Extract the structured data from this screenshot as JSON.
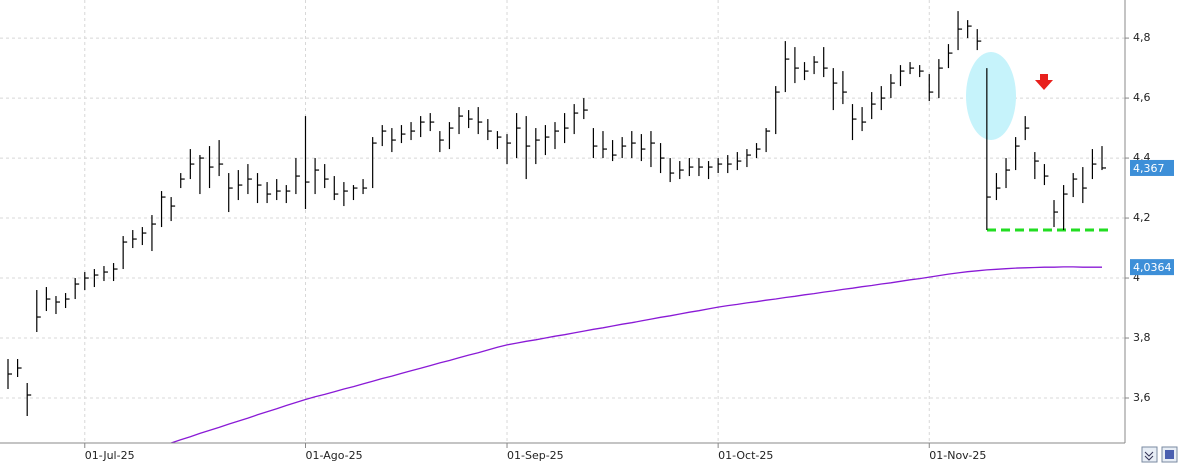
{
  "chart_data": {
    "type": "ohlc",
    "categories": [
      null,
      null,
      null,
      null,
      null,
      null,
      null,
      null,
      "01-Jul-25",
      null,
      null,
      null,
      null,
      null,
      null,
      null,
      null,
      null,
      null,
      null,
      null,
      null,
      null,
      null,
      null,
      null,
      null,
      null,
      null,
      null,
      null,
      "01-Ago-25",
      null,
      null,
      null,
      null,
      null,
      null,
      null,
      null,
      null,
      null,
      null,
      null,
      null,
      null,
      null,
      null,
      null,
      null,
      null,
      null,
      "01-Sep-25",
      null,
      null,
      null,
      null,
      null,
      null,
      null,
      null,
      null,
      null,
      null,
      null,
      null,
      null,
      null,
      null,
      null,
      null,
      null,
      null,
      null,
      "01-Oct-25",
      null,
      null,
      null,
      null,
      null,
      null,
      null,
      null,
      null,
      null,
      null,
      null,
      null,
      null,
      null,
      null,
      null,
      null,
      null,
      null,
      null,
      "01-Nov-25",
      null,
      null,
      null,
      null,
      null,
      null,
      null,
      null,
      null,
      null,
      null,
      null,
      null,
      null,
      null,
      null,
      null,
      null
    ],
    "series": [
      {
        "type": "ohlc",
        "color": "#000000",
        "high": [
          3.73,
          3.73,
          3.65,
          3.96,
          3.97,
          3.94,
          3.95,
          4.0,
          4.02,
          4.03,
          4.04,
          4.05,
          4.14,
          4.16,
          4.17,
          4.21,
          4.29,
          4.27,
          4.35,
          4.43,
          4.41,
          4.44,
          4.46,
          4.35,
          4.36,
          4.38,
          4.35,
          4.32,
          4.33,
          4.31,
          4.4,
          4.54,
          4.4,
          4.38,
          4.34,
          4.32,
          4.31,
          4.33,
          4.47,
          4.51,
          4.5,
          4.51,
          4.52,
          4.54,
          4.55,
          4.49,
          4.52,
          4.57,
          4.56,
          4.57,
          4.53,
          4.49,
          4.48,
          4.55,
          4.54,
          4.5,
          4.51,
          4.52,
          4.55,
          4.58,
          4.6,
          4.5,
          4.49,
          4.46,
          4.47,
          4.49,
          4.48,
          4.49,
          4.45,
          4.4,
          4.39,
          4.4,
          4.4,
          4.39,
          4.4,
          4.41,
          4.42,
          4.43,
          4.45,
          4.5,
          4.64,
          4.79,
          4.77,
          4.72,
          4.74,
          4.77,
          4.7,
          4.69,
          4.58,
          4.57,
          4.62,
          4.64,
          4.68,
          4.71,
          4.72,
          4.71,
          4.68,
          4.73,
          4.78,
          4.89,
          4.86,
          4.83,
          4.7,
          4.35,
          4.4,
          4.47,
          4.54,
          4.42,
          4.38,
          4.26,
          4.31,
          4.35,
          4.37,
          4.43,
          4.44
        ],
        "low": [
          3.63,
          3.67,
          3.54,
          3.82,
          3.89,
          3.88,
          3.9,
          3.93,
          3.96,
          3.97,
          3.99,
          3.99,
          4.03,
          4.1,
          4.11,
          4.09,
          4.17,
          4.19,
          4.3,
          4.33,
          4.28,
          4.3,
          4.34,
          4.22,
          4.26,
          4.28,
          4.25,
          4.25,
          4.26,
          4.25,
          4.28,
          4.23,
          4.28,
          4.3,
          4.26,
          4.24,
          4.26,
          4.28,
          4.3,
          4.44,
          4.42,
          4.45,
          4.46,
          4.47,
          4.49,
          4.42,
          4.43,
          4.48,
          4.5,
          4.48,
          4.46,
          4.43,
          4.38,
          4.4,
          4.33,
          4.38,
          4.41,
          4.43,
          4.45,
          4.48,
          4.53,
          4.4,
          4.4,
          4.39,
          4.4,
          4.4,
          4.39,
          4.37,
          4.35,
          4.32,
          4.33,
          4.34,
          4.34,
          4.33,
          4.35,
          4.35,
          4.36,
          4.37,
          4.4,
          4.42,
          4.48,
          4.62,
          4.65,
          4.66,
          4.68,
          4.67,
          4.56,
          4.58,
          4.46,
          4.49,
          4.53,
          4.56,
          4.6,
          4.64,
          4.68,
          4.67,
          4.59,
          4.6,
          4.7,
          4.76,
          4.8,
          4.76,
          4.16,
          4.26,
          4.3,
          4.36,
          4.46,
          4.33,
          4.31,
          4.17,
          4.16,
          4.27,
          4.25,
          4.33,
          4.36
        ],
        "close": [
          3.68,
          3.7,
          3.61,
          3.87,
          3.93,
          3.92,
          3.93,
          3.98,
          4.0,
          4.01,
          4.02,
          4.03,
          4.12,
          4.13,
          4.15,
          4.18,
          4.27,
          4.24,
          4.33,
          4.38,
          4.4,
          4.37,
          4.38,
          4.3,
          4.31,
          4.33,
          4.31,
          4.28,
          4.29,
          4.29,
          4.34,
          4.32,
          4.36,
          4.33,
          4.28,
          4.29,
          4.3,
          4.3,
          4.45,
          4.49,
          4.46,
          4.48,
          4.49,
          4.52,
          4.52,
          4.46,
          4.5,
          4.54,
          4.53,
          4.52,
          4.49,
          4.47,
          4.45,
          4.5,
          4.44,
          4.46,
          4.47,
          4.49,
          4.5,
          4.55,
          4.56,
          4.44,
          4.43,
          4.41,
          4.44,
          4.45,
          4.43,
          4.45,
          4.4,
          4.35,
          4.36,
          4.37,
          4.37,
          4.37,
          4.38,
          4.38,
          4.39,
          4.41,
          4.43,
          4.49,
          4.62,
          4.73,
          4.7,
          4.69,
          4.72,
          4.7,
          4.65,
          4.62,
          4.53,
          4.52,
          4.58,
          4.6,
          4.65,
          4.69,
          4.7,
          4.69,
          4.62,
          4.7,
          4.75,
          4.83,
          4.84,
          4.79,
          4.27,
          4.3,
          4.36,
          4.44,
          4.5,
          4.39,
          4.34,
          4.22,
          4.28,
          4.33,
          4.3,
          4.38,
          4.367
        ],
        "badge": {
          "value": 4.367,
          "label": "4,367",
          "color": "#3d8fd8"
        }
      },
      {
        "type": "line",
        "color": "#8a1ad6",
        "values": [
          null,
          null,
          null,
          null,
          null,
          null,
          null,
          null,
          null,
          null,
          null,
          null,
          null,
          null,
          null,
          null,
          null,
          3.45,
          3.461,
          3.471,
          3.482,
          3.492,
          3.502,
          3.513,
          3.523,
          3.533,
          3.544,
          3.554,
          3.564,
          3.575,
          3.585,
          3.595,
          3.604,
          3.612,
          3.621,
          3.63,
          3.638,
          3.647,
          3.656,
          3.665,
          3.673,
          3.682,
          3.691,
          3.699,
          3.708,
          3.717,
          3.725,
          3.734,
          3.743,
          3.751,
          3.76,
          3.769,
          3.777,
          3.783,
          3.789,
          3.794,
          3.8,
          3.806,
          3.811,
          3.817,
          3.823,
          3.829,
          3.834,
          3.84,
          3.846,
          3.851,
          3.857,
          3.863,
          3.869,
          3.874,
          3.88,
          3.886,
          3.891,
          3.897,
          3.903,
          3.908,
          3.912,
          3.917,
          3.921,
          3.926,
          3.93,
          3.935,
          3.939,
          3.944,
          3.948,
          3.953,
          3.957,
          3.962,
          3.966,
          3.971,
          3.975,
          3.98,
          3.984,
          3.989,
          3.994,
          3.998,
          4.003,
          4.008,
          4.013,
          4.017,
          4.021,
          4.024,
          4.027,
          4.029,
          4.031,
          4.033,
          4.034,
          4.035,
          4.036,
          4.036,
          4.037,
          4.037,
          4.036,
          4.036,
          4.036
        ],
        "badge": {
          "value": 4.0364,
          "label": "4,0364",
          "color": "#3d8fd8"
        }
      }
    ],
    "hlines": [
      {
        "value": 4.16,
        "color": "#22dd22"
      }
    ],
    "ylim": [
      3.45,
      4.927
    ],
    "yticks": [
      {
        "value": 4.8,
        "label": "4,8"
      },
      {
        "value": 4.6,
        "label": "4,6"
      },
      {
        "value": 4.4,
        "label": "4,4"
      },
      {
        "value": 4.2,
        "label": "4,2"
      },
      4,
      {
        "value": 3.8,
        "label": "3,8"
      },
      {
        "value": 3.6,
        "label": "3,6"
      }
    ],
    "grid": true
  }
}
